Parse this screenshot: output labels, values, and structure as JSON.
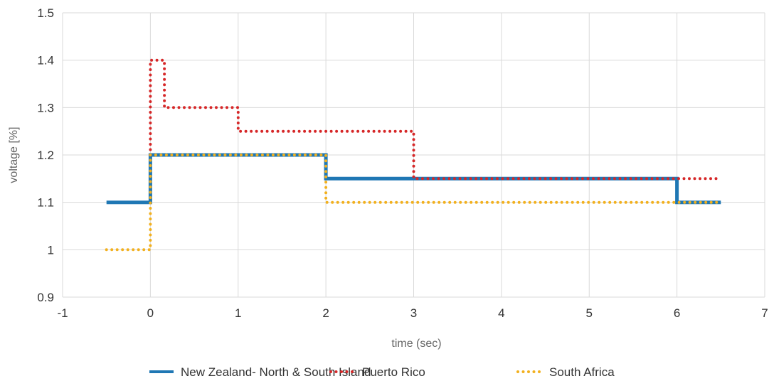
{
  "chart_data": {
    "type": "line",
    "step": true,
    "title": "",
    "xlabel": "time (sec)",
    "ylabel": "voltage [%]",
    "xlim": [
      -1,
      7
    ],
    "ylim": [
      0.9,
      1.5
    ],
    "x_ticks": [
      "-1",
      "0",
      "1",
      "2",
      "3",
      "4",
      "5",
      "6",
      "7"
    ],
    "y_ticks": [
      "0.9",
      "1",
      "1.1",
      "1.2",
      "1.3",
      "1.4",
      "1.5"
    ],
    "grid": true,
    "legend_position": "bottom",
    "series": [
      {
        "name": "New Zealand- North & South Island",
        "color": "#1f77b4",
        "style": "solid",
        "points": [
          [
            -0.5,
            1.1
          ],
          [
            0,
            1.1
          ],
          [
            0,
            1.2
          ],
          [
            2,
            1.2
          ],
          [
            2,
            1.15
          ],
          [
            6,
            1.15
          ],
          [
            6,
            1.1
          ],
          [
            6.5,
            1.1
          ]
        ]
      },
      {
        "name": "Puerto Rico",
        "color": "#d62728",
        "style": "dotted",
        "points": [
          [
            0,
            1.2
          ],
          [
            0,
            1.4
          ],
          [
            0.16,
            1.4
          ],
          [
            0.16,
            1.3
          ],
          [
            1,
            1.3
          ],
          [
            1,
            1.25
          ],
          [
            3,
            1.25
          ],
          [
            3,
            1.15
          ],
          [
            6.5,
            1.15
          ]
        ]
      },
      {
        "name": "South Africa",
        "color": "#f2b01e",
        "style": "dotted",
        "points": [
          [
            -0.5,
            1.0
          ],
          [
            0,
            1.0
          ],
          [
            0,
            1.2
          ],
          [
            2,
            1.2
          ],
          [
            2,
            1.1
          ],
          [
            6.5,
            1.1
          ]
        ]
      }
    ]
  }
}
